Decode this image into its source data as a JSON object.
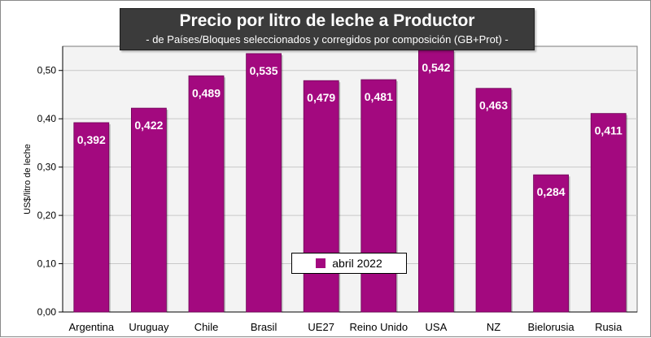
{
  "chart_data": {
    "type": "bar",
    "title": "Precio por litro de leche a Productor",
    "subtitle": "-  de Países/Bloques seleccionados y corregidos por composición (GB+Prot) -",
    "ylabel": "US$/litro de leche",
    "xlabel": "",
    "categories": [
      "Argentina",
      "Uruguay",
      "Chile",
      "Brasil",
      "UE27",
      "Reino Unido",
      "USA",
      "NZ",
      "Bielorusia",
      "Rusia"
    ],
    "series": [
      {
        "name": "abril 2022",
        "values": [
          0.392,
          0.422,
          0.489,
          0.535,
          0.479,
          0.481,
          0.542,
          0.463,
          0.284,
          0.411
        ],
        "labels": [
          "0,392",
          "0,422",
          "0,489",
          "0,535",
          "0,479",
          "0,481",
          "0,542",
          "0,463",
          "0,284",
          "0,411"
        ],
        "color": "#a3097f"
      }
    ],
    "ylim": [
      0,
      0.55
    ],
    "yticks": [
      0,
      0.1,
      0.2,
      0.3,
      0.4,
      0.5
    ],
    "ytick_labels": [
      "0,00",
      "0,10",
      "0,20",
      "0,30",
      "0,40",
      "0,50"
    ],
    "grid": true,
    "plot_background": "#f3f3f3",
    "legend_position": "bottom-center"
  }
}
